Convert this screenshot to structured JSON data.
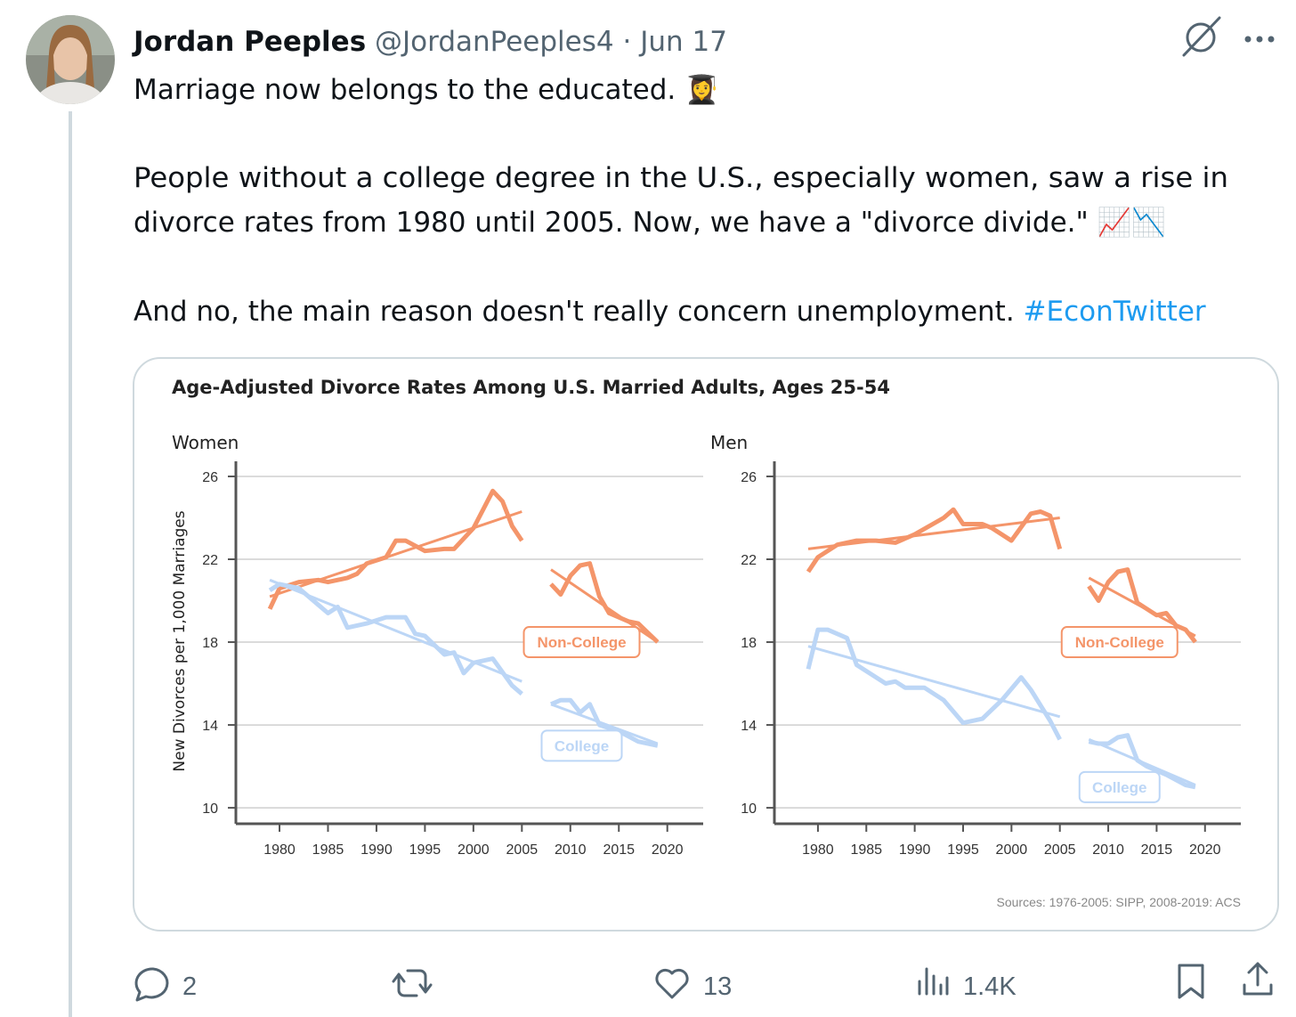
{
  "tweet": {
    "author": "Jordan Peeples",
    "handle": "@JordanPeeples4",
    "separator": "·",
    "date": "Jun 17",
    "lines": [
      "Marriage now belongs to the educated. 👩‍🎓",
      "People without a college degree in the U.S., especially women, saw a rise in",
      "divorce rates from 1980 until 2005. Now, we have a \"divorce divide.\" 📈📉",
      "And no, the main reason doesn't really concern unemployment."
    ],
    "hashtag": "#EconTwitter"
  },
  "figure": {
    "title": "Age-Adjusted Divorce Rates Among U.S. Married Adults, Ages 25-54",
    "ylabel": "New Divorces per 1,000 Marriages",
    "source": "Sources: 1976-2005: SIPP, 2008-2019: ACS"
  },
  "chart_data": [
    {
      "type": "line",
      "title": "Women",
      "xlim": [
        1975.5,
        2023.7
      ],
      "ylim": [
        9.23,
        26.73
      ],
      "xticks": [
        1980,
        1985,
        1990,
        1995,
        2000,
        2005,
        2010,
        2015,
        2020
      ],
      "yticks": [
        10,
        14,
        18,
        22,
        26
      ],
      "grid": true,
      "series": [
        {
          "name": "Non-College",
          "color": "#f4956a",
          "x": [
            1979,
            1980,
            1982,
            1984,
            1985,
            1987,
            1988,
            1989,
            1991,
            1992,
            1993,
            1995,
            1997,
            1998,
            2000,
            2002,
            2003,
            2004,
            2005,
            2006,
            2008,
            2009,
            2010,
            2011,
            2012,
            2013,
            2014,
            2016,
            2017,
            2019
          ],
          "values": [
            19.6,
            20.6,
            20.9,
            21.0,
            20.9,
            21.1,
            21.3,
            21.8,
            22.1,
            22.9,
            22.9,
            22.4,
            22.5,
            22.5,
            23.5,
            25.3,
            24.8,
            23.6,
            22.9,
            null,
            20.8,
            20.3,
            21.2,
            21.7,
            21.8,
            20.2,
            19.4,
            19.0,
            18.9,
            18.0
          ],
          "trend": {
            "x": [
              1979,
              2005,
              2006,
              2008,
              2019
            ],
            "values": [
              20.2,
              24.3,
              null,
              21.5,
              18.0
            ]
          }
        },
        {
          "name": "College",
          "color": "#bcd6f6",
          "x": [
            1979,
            1980,
            1982,
            1984,
            1985,
            1986,
            1987,
            1989,
            1991,
            1993,
            1994,
            1995,
            1997,
            1998,
            1999,
            2000,
            2002,
            2004,
            2005,
            2006,
            2008,
            2009,
            2010,
            2011,
            2012,
            2013,
            2015,
            2017,
            2019
          ],
          "values": [
            20.5,
            20.8,
            20.6,
            19.8,
            19.4,
            19.7,
            18.7,
            18.9,
            19.2,
            19.2,
            18.4,
            18.3,
            17.4,
            17.5,
            16.5,
            17.0,
            17.2,
            15.9,
            15.5,
            null,
            15.0,
            15.2,
            15.2,
            14.6,
            15.0,
            14.0,
            13.7,
            13.2,
            13.0
          ],
          "trend": {
            "x": [
              1979,
              2005,
              2006,
              2008,
              2019
            ],
            "values": [
              21.0,
              16.1,
              null,
              15.0,
              13.1
            ]
          }
        }
      ]
    },
    {
      "type": "line",
      "title": "Men",
      "xlim": [
        1975.5,
        2023.7
      ],
      "ylim": [
        9.23,
        26.73
      ],
      "xticks": [
        1980,
        1985,
        1990,
        1995,
        2000,
        2005,
        2010,
        2015,
        2020
      ],
      "yticks": [
        10,
        14,
        18,
        22,
        26
      ],
      "grid": true,
      "series": [
        {
          "name": "Non-College",
          "color": "#f4956a",
          "x": [
            1979,
            1980,
            1982,
            1984,
            1986,
            1988,
            1990,
            1993,
            1994,
            1995,
            1997,
            1998,
            2000,
            2002,
            2003,
            2004,
            2005,
            2006,
            2008,
            2009,
            2010,
            2011,
            2012,
            2013,
            2014,
            2015,
            2016,
            2017,
            2018,
            2019
          ],
          "values": [
            21.4,
            22.1,
            22.7,
            22.9,
            22.9,
            22.8,
            23.2,
            24.0,
            24.4,
            23.7,
            23.7,
            23.5,
            22.9,
            24.2,
            24.3,
            24.1,
            22.5,
            null,
            20.7,
            20.0,
            20.9,
            21.4,
            21.5,
            19.9,
            19.6,
            19.3,
            19.4,
            18.8,
            18.6,
            18.0
          ],
          "trend": {
            "x": [
              1979,
              2005,
              2006,
              2008,
              2019
            ],
            "values": [
              22.5,
              24.0,
              null,
              21.1,
              18.3
            ]
          }
        },
        {
          "name": "College",
          "color": "#bcd6f6",
          "x": [
            1979,
            1980,
            1981,
            1983,
            1984,
            1987,
            1988,
            1989,
            1991,
            1993,
            1995,
            1997,
            1999,
            2001,
            2002,
            2004,
            2005,
            2006,
            2008,
            2009,
            2010,
            2011,
            2012,
            2013,
            2014,
            2016,
            2018,
            2019
          ],
          "values": [
            16.7,
            18.6,
            18.6,
            18.2,
            16.9,
            16.0,
            16.1,
            15.8,
            15.8,
            15.2,
            14.1,
            14.3,
            15.2,
            16.3,
            15.7,
            14.2,
            13.3,
            null,
            13.2,
            13.1,
            13.1,
            13.4,
            13.5,
            12.3,
            12.0,
            11.6,
            11.1,
            11.0
          ],
          "trend": {
            "x": [
              1979,
              2005,
              2006,
              2008,
              2019
            ],
            "values": [
              17.8,
              14.4,
              null,
              13.3,
              11.1
            ]
          }
        }
      ]
    }
  ],
  "actions": {
    "replies": 2,
    "likes": 13,
    "views": "1.4K"
  }
}
